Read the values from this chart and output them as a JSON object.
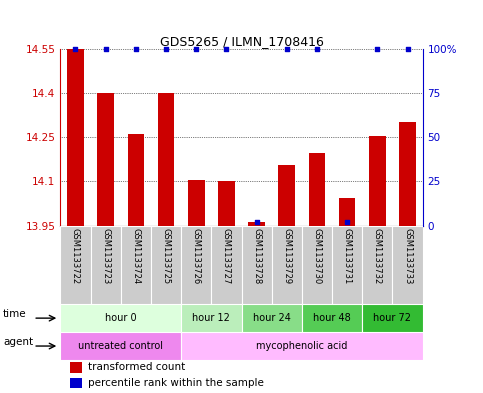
{
  "title": "GDS5265 / ILMN_1708416",
  "samples": [
    "GSM1133722",
    "GSM1133723",
    "GSM1133724",
    "GSM1133725",
    "GSM1133726",
    "GSM1133727",
    "GSM1133728",
    "GSM1133729",
    "GSM1133730",
    "GSM1133731",
    "GSM1133732",
    "GSM1133733"
  ],
  "bar_values": [
    14.55,
    14.4,
    14.26,
    14.4,
    14.105,
    14.1,
    13.962,
    14.155,
    14.195,
    14.045,
    14.255,
    14.3
  ],
  "percentile_values": [
    100,
    100,
    100,
    100,
    100,
    100,
    2,
    100,
    100,
    2,
    100,
    100
  ],
  "ymin": 13.95,
  "ymax": 14.55,
  "yticks": [
    13.95,
    14.1,
    14.25,
    14.4,
    14.55
  ],
  "y2ticks": [
    0,
    25,
    50,
    75,
    100
  ],
  "bar_color": "#cc0000",
  "percentile_color": "#0000cc",
  "time_groups": [
    {
      "label": "hour 0",
      "start": 0,
      "end": 4,
      "color": "#ddffdd"
    },
    {
      "label": "hour 12",
      "start": 4,
      "end": 6,
      "color": "#bbeebb"
    },
    {
      "label": "hour 24",
      "start": 6,
      "end": 8,
      "color": "#88dd88"
    },
    {
      "label": "hour 48",
      "start": 8,
      "end": 10,
      "color": "#55cc55"
    },
    {
      "label": "hour 72",
      "start": 10,
      "end": 12,
      "color": "#33bb33"
    }
  ],
  "agent_groups": [
    {
      "label": "untreated control",
      "start": 0,
      "end": 4,
      "color": "#ee88ee"
    },
    {
      "label": "mycophenolic acid",
      "start": 4,
      "end": 12,
      "color": "#ffbbff"
    }
  ],
  "legend_items": [
    {
      "label": "transformed count",
      "color": "#cc0000"
    },
    {
      "label": "percentile rank within the sample",
      "color": "#0000cc"
    }
  ],
  "xlabel_time": "time",
  "xlabel_agent": "agent"
}
